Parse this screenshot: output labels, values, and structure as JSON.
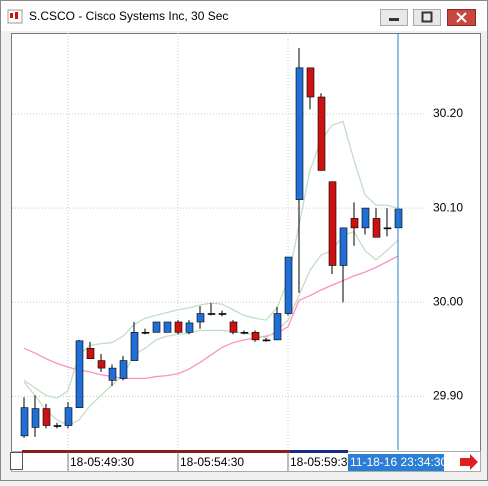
{
  "window": {
    "title": "S.CSCO - Cisco Systems Inc, 30 Sec"
  },
  "chart_data": {
    "type": "candlestick",
    "categories": [
      null,
      null,
      null,
      null,
      "18-05:49:30",
      null,
      null,
      null,
      null,
      null,
      null,
      null,
      null,
      null,
      "18-05:54:30",
      null,
      null,
      null,
      null,
      null,
      null,
      null,
      null,
      null,
      "18-05:59:30",
      null,
      null,
      null,
      null,
      null,
      null,
      null,
      null,
      null,
      null
    ],
    "cursor_label": "11-18-16 23:34:30",
    "open": [
      29.858,
      29.867,
      29.887,
      29.869,
      29.869,
      29.888,
      29.951,
      29.938,
      29.917,
      29.919,
      29.938,
      29.968,
      29.968,
      29.968,
      29.979,
      29.968,
      29.979,
      29.988,
      29.988,
      29.979,
      29.968,
      29.968,
      29.96,
      29.96,
      29.988,
      30.109,
      30.249,
      30.218,
      30.128,
      30.039,
      30.089,
      30.079,
      30.089,
      30.079,
      30.079
    ],
    "close": [
      29.888,
      29.887,
      29.869,
      29.869,
      29.888,
      29.959,
      29.94,
      29.93,
      29.93,
      29.938,
      29.968,
      29.968,
      29.979,
      29.979,
      29.968,
      29.978,
      29.988,
      29.988,
      29.988,
      29.968,
      29.968,
      29.96,
      29.96,
      29.988,
      30.048,
      30.249,
      30.218,
      30.14,
      30.039,
      30.079,
      30.079,
      30.1,
      30.069,
      30.079,
      30.099
    ],
    "high": [
      29.899,
      29.901,
      29.892,
      29.872,
      29.894,
      29.96,
      29.958,
      29.945,
      29.934,
      29.943,
      29.979,
      29.972,
      29.979,
      29.979,
      29.981,
      29.981,
      29.996,
      29.999,
      29.991,
      29.981,
      29.97,
      29.97,
      29.962,
      29.995,
      30.048,
      30.27,
      30.249,
      30.222,
      30.128,
      30.079,
      30.106,
      30.1,
      30.1,
      30.1,
      30.099
    ],
    "low": [
      29.856,
      29.857,
      29.866,
      29.866,
      29.866,
      29.888,
      29.94,
      29.926,
      29.911,
      29.917,
      29.938,
      29.966,
      29.968,
      29.968,
      29.966,
      29.966,
      29.972,
      29.986,
      29.985,
      29.966,
      29.966,
      29.958,
      29.958,
      29.96,
      29.986,
      30.01,
      30.205,
      30.14,
      30.03,
      30.0,
      30.06,
      30.072,
      30.069,
      30.07,
      30.072
    ],
    "up_color": "#1f6fd6",
    "down_color": "#cc1111",
    "flat_color": "#000000",
    "overlays": [
      {
        "color": "#ff8fc8",
        "values": [
          29.951,
          29.946,
          29.94,
          29.935,
          29.931,
          29.928,
          29.926,
          29.923,
          29.921,
          29.919,
          29.919,
          29.919,
          29.921,
          29.922,
          29.924,
          29.929,
          29.936,
          29.944,
          29.952,
          29.957,
          29.96,
          29.962,
          29.964,
          29.967,
          29.974,
          30.002,
          30.007,
          30.013,
          30.018,
          30.023,
          30.028,
          30.032,
          30.037,
          30.043,
          30.049
        ]
      },
      {
        "color": "#c2dfc2",
        "values": [
          29.917,
          29.909,
          29.901,
          29.898,
          29.906,
          29.944,
          29.954,
          29.956,
          29.957,
          29.964,
          29.976,
          29.983,
          29.986,
          29.989,
          29.992,
          29.994,
          29.997,
          29.999,
          29.998,
          29.992,
          29.986,
          29.983,
          29.981,
          29.994,
          30.023,
          30.082,
          30.14,
          30.172,
          30.188,
          30.192,
          30.151,
          30.114,
          30.103,
          30.103,
          30.1
        ]
      },
      {
        "color": "#c2dfc2",
        "values": [
          29.915,
          29.901,
          29.885,
          29.875,
          29.869,
          29.875,
          29.89,
          29.901,
          29.912,
          29.922,
          29.944,
          29.951,
          29.96,
          29.964,
          29.966,
          29.967,
          29.97,
          29.97,
          29.97,
          29.969,
          29.967,
          29.965,
          29.962,
          29.97,
          29.981,
          30.007,
          30.034,
          30.05,
          30.055,
          30.071,
          30.075,
          30.055,
          30.045,
          30.055,
          30.066
        ]
      }
    ],
    "ylim": [
      29.843,
      30.286
    ],
    "yticks": [
      {
        "value": 29.9,
        "label": "29.90"
      },
      {
        "value": 30.0,
        "label": "30.00"
      },
      {
        "value": 30.1,
        "label": "30.10"
      },
      {
        "value": 30.2,
        "label": "30.20"
      }
    ],
    "grid": true
  }
}
